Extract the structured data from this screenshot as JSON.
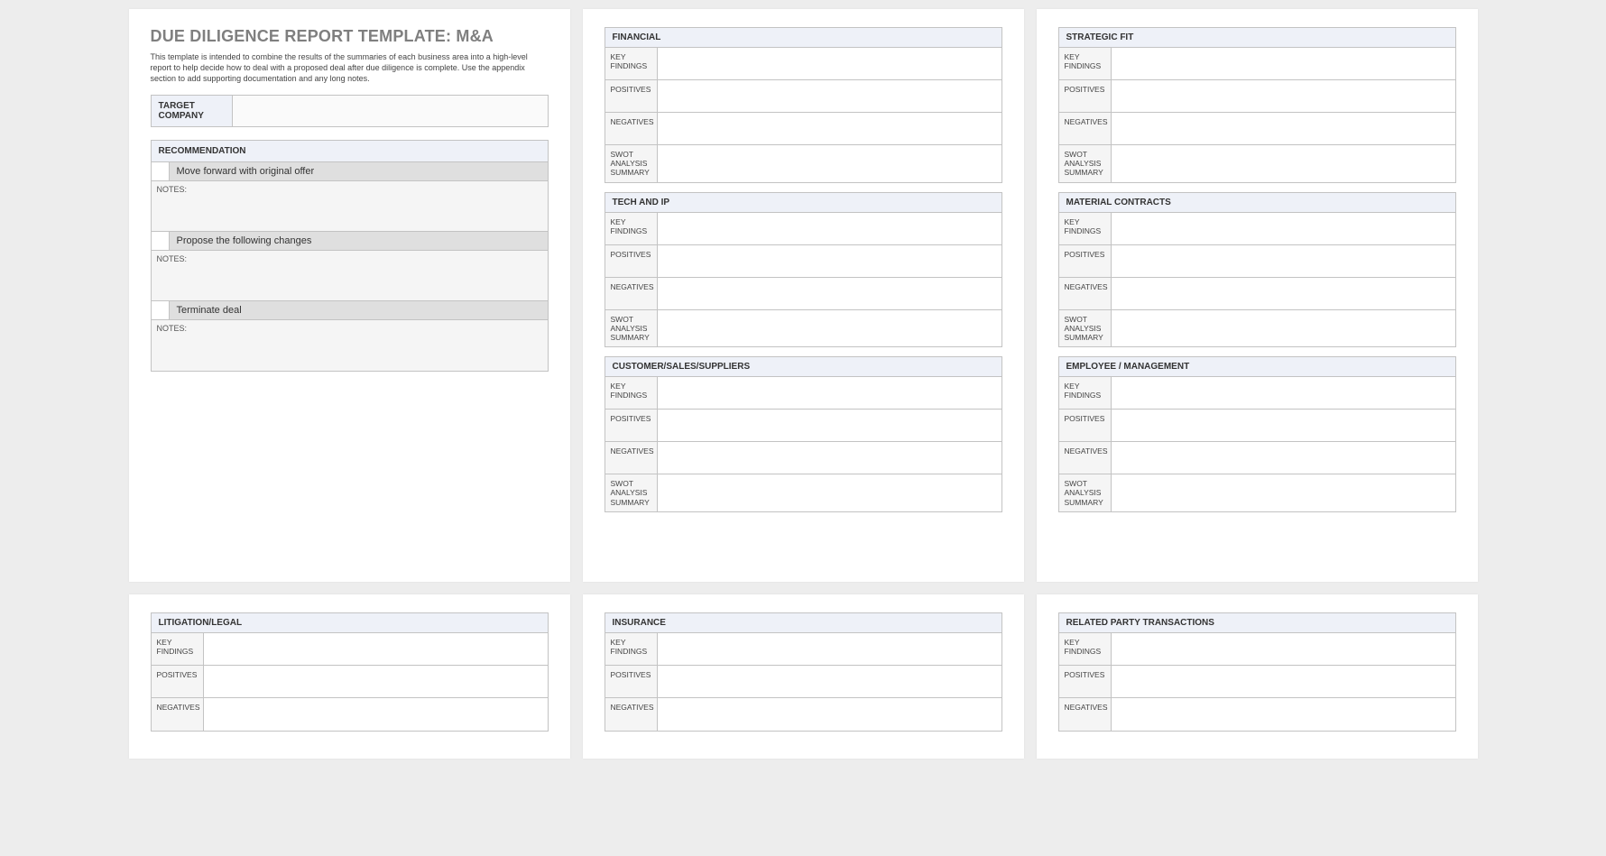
{
  "colors": {
    "pageBg": "#ededed",
    "cardBg": "#ffffff",
    "headerBlue": "#eef1f8",
    "optionGray": "#dfdfdf",
    "lightGray": "#f5f5f5",
    "border": "#c3c3c3",
    "titleGray": "#7f7f7f"
  },
  "title": "DUE DILIGENCE REPORT TEMPLATE: M&A",
  "intro": "This template is intended to combine the results of the summaries of each business area into a high-level report to help decide how to deal with a proposed deal after due diligence is complete.  Use the appendix section to add supporting documentation and any long notes.",
  "targetCompany": {
    "label": "TARGET COMPANY",
    "value": ""
  },
  "recommendation": {
    "header": "RECOMMENDATION",
    "notesLabel": "NOTES:",
    "options": [
      {
        "label": "Move forward with original offer",
        "checked": false
      },
      {
        "label": "Propose the following changes",
        "checked": false
      },
      {
        "label": "Terminate deal",
        "checked": false
      }
    ]
  },
  "rowLabels": {
    "keyFindings": "KEY FINDINGS",
    "positives": "POSITIVES",
    "negatives": "NEGATIVES",
    "swot": "SWOT ANALYSIS SUMMARY"
  },
  "areas": {
    "financial": {
      "title": "FINANCIAL"
    },
    "tech": {
      "title": "TECH AND IP"
    },
    "customer": {
      "title": "CUSTOMER/SALES/SUPPLIERS"
    },
    "strategic": {
      "title": "STRATEGIC FIT"
    },
    "material": {
      "title": "MATERIAL CONTRACTS"
    },
    "employee": {
      "title": "EMPLOYEE / MANAGEMENT"
    },
    "litigation": {
      "title": "LITIGATION/LEGAL"
    },
    "insurance": {
      "title": "INSURANCE"
    },
    "related": {
      "title": "RELATED PARTY TRANSACTIONS"
    }
  }
}
